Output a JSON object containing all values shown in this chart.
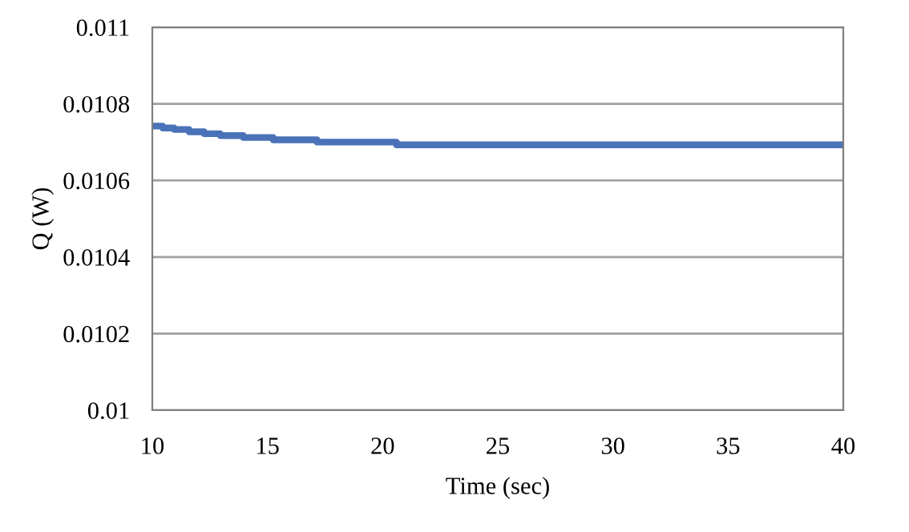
{
  "chart_data": {
    "type": "step",
    "xlabel": "Time (sec)",
    "ylabel": "Q (W)",
    "x": [
      10,
      10.45,
      10.95,
      11.6,
      12.25,
      12.95,
      13.95,
      15.25,
      17.15,
      20.6,
      40
    ],
    "series": [
      {
        "color": "#4a72b8",
        "values": [
          0.010742,
          0.010737,
          0.010733,
          0.010727,
          0.010722,
          0.010717,
          0.010712,
          0.010706,
          0.0107,
          0.010693,
          0.010693
        ]
      }
    ],
    "xlim": [
      10,
      40
    ],
    "xticks": [
      10,
      15,
      20,
      25,
      30,
      35,
      40
    ],
    "ylim": [
      0.01,
      0.011
    ],
    "yticks": [
      0.01,
      0.0102,
      0.0104,
      0.0106,
      0.0108,
      0.011
    ],
    "grid": "y",
    "legend": false,
    "marker": "none",
    "line_style": "solid"
  }
}
